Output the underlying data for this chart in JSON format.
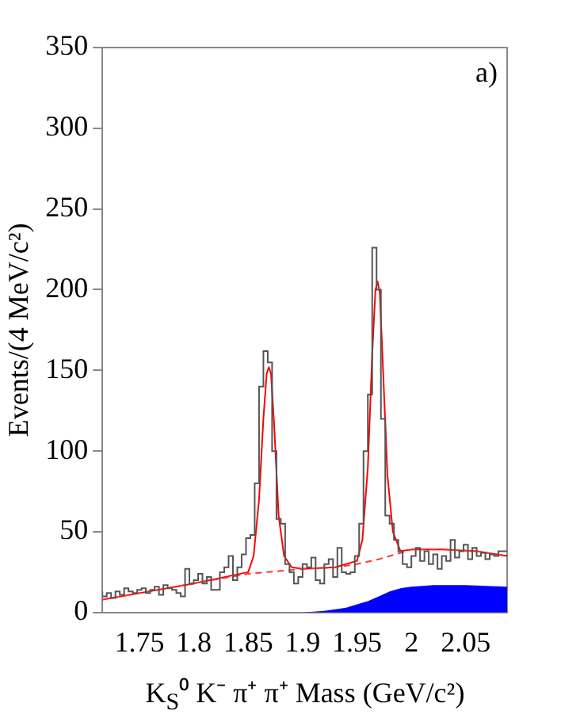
{
  "chart_data": {
    "type": "histogram",
    "xlabel": "K$_{S}$⁰ K⁻ π⁺ π⁺ Mass (GeV/c²)",
    "ylabel": "Events/(4 MeV/c²)",
    "annotations": [
      "a)"
    ],
    "xlim": [
      1.716,
      2.088
    ],
    "xticks": [
      1.75,
      1.8,
      1.85,
      1.9,
      1.95,
      2,
      2.05
    ],
    "ylim": [
      0,
      350
    ],
    "yticks": [
      0,
      50,
      100,
      150,
      200,
      250,
      300,
      350
    ],
    "grid": false,
    "legend": false,
    "series": [
      {
        "type": "area",
        "color": "#0000ff",
        "x": [
          1.716,
          1.9,
          1.92,
          1.94,
          1.95,
          1.96,
          1.97,
          1.98,
          1.99,
          2.0,
          2.02,
          2.05,
          2.088
        ],
        "values": [
          0,
          0,
          1,
          3,
          5,
          7,
          10,
          13,
          15,
          16,
          17,
          17,
          16
        ]
      },
      {
        "type": "histogram",
        "color": "#555555",
        "bins": [
          1.716,
          1.72,
          1.724,
          1.728,
          1.732,
          1.736,
          1.74,
          1.744,
          1.748,
          1.752,
          1.756,
          1.76,
          1.764,
          1.768,
          1.772,
          1.776,
          1.78,
          1.784,
          1.788,
          1.792,
          1.796,
          1.8,
          1.804,
          1.808,
          1.812,
          1.816,
          1.82,
          1.824,
          1.828,
          1.832,
          1.836,
          1.84,
          1.844,
          1.848,
          1.852,
          1.856,
          1.86,
          1.864,
          1.868,
          1.872,
          1.876,
          1.88,
          1.884,
          1.888,
          1.892,
          1.896,
          1.9,
          1.904,
          1.908,
          1.912,
          1.916,
          1.92,
          1.924,
          1.928,
          1.932,
          1.936,
          1.94,
          1.944,
          1.948,
          1.952,
          1.956,
          1.96,
          1.964,
          1.968,
          1.972,
          1.976,
          1.98,
          1.984,
          1.988,
          1.992,
          1.996,
          2.0,
          2.004,
          2.008,
          2.012,
          2.016,
          2.02,
          2.024,
          2.028,
          2.032,
          2.036,
          2.04,
          2.044,
          2.048,
          2.052,
          2.056,
          2.06,
          2.064,
          2.068,
          2.072,
          2.076,
          2.08,
          2.084,
          2.088
        ],
        "values": [
          13,
          10,
          12,
          9,
          13,
          11,
          15,
          13,
          12,
          14,
          15,
          12,
          14,
          16,
          11,
          17,
          15,
          14,
          12,
          10,
          27,
          18,
          20,
          24,
          18,
          22,
          14,
          14,
          25,
          28,
          35,
          20,
          28,
          36,
          46,
          48,
          80,
          140,
          162,
          155,
          100,
          58,
          55,
          30,
          25,
          18,
          22,
          30,
          28,
          34,
          20,
          18,
          30,
          33,
          22,
          40,
          25,
          24,
          25,
          35,
          55,
          100,
          135,
          226,
          200,
          120,
          60,
          55,
          45,
          38,
          30,
          28,
          35,
          40,
          32,
          38,
          30,
          36,
          27,
          35,
          32,
          45,
          34,
          38,
          42,
          33,
          40,
          35,
          37,
          33,
          36,
          35,
          38
        ]
      },
      {
        "type": "line",
        "color": "#ff3333",
        "line_style": "dashed",
        "x": [
          1.716,
          1.75,
          1.8,
          1.85,
          1.9,
          1.93,
          1.95,
          1.97,
          1.99,
          2.0,
          2.03,
          2.06,
          2.088
        ],
        "values": [
          8,
          12,
          18,
          24,
          27,
          28,
          30,
          33,
          37,
          39,
          39,
          38,
          35
        ]
      },
      {
        "type": "line",
        "color": "#ff0000",
        "line_style": "solid",
        "x": [
          1.716,
          1.75,
          1.8,
          1.85,
          1.855,
          1.86,
          1.864,
          1.867,
          1.869,
          1.871,
          1.874,
          1.878,
          1.883,
          1.89,
          1.9,
          1.93,
          1.95,
          1.955,
          1.96,
          1.964,
          1.967,
          1.969,
          1.971,
          1.974,
          1.978,
          1.983,
          1.99,
          2.0,
          2.03,
          2.06,
          2.088
        ],
        "values": [
          8,
          12,
          18,
          25,
          35,
          70,
          120,
          148,
          152,
          148,
          115,
          60,
          35,
          28,
          27,
          28,
          32,
          45,
          90,
          160,
          200,
          205,
          198,
          150,
          85,
          50,
          38,
          39,
          39,
          38,
          35
        ]
      }
    ]
  }
}
